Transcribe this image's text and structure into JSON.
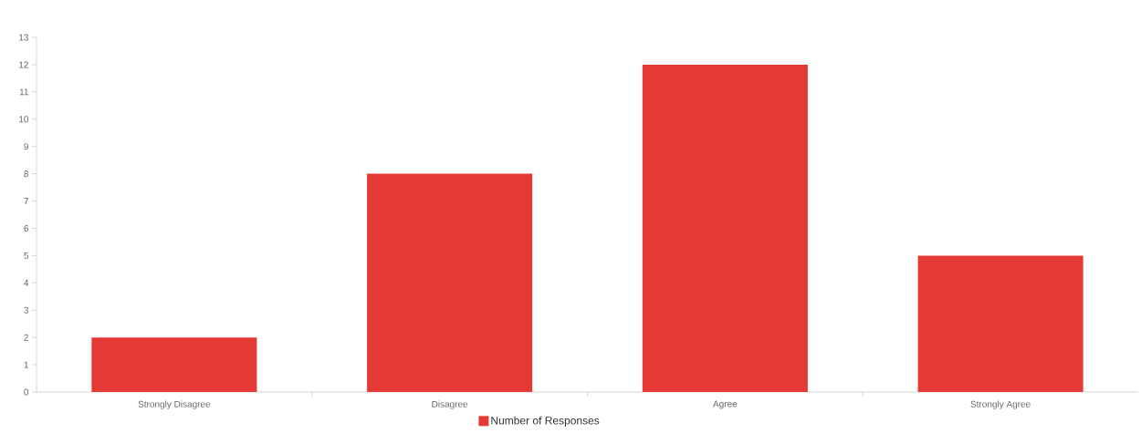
{
  "chart_data": {
    "type": "bar",
    "categories": [
      "Strongly Disagree",
      "Disagree",
      "Agree",
      "Strongly Agree"
    ],
    "series": [
      {
        "name": "Number of Responses",
        "color": "#e53935",
        "values": [
          2,
          8,
          12,
          5
        ]
      }
    ],
    "ylim": [
      0,
      13
    ],
    "yticks": [
      0,
      1,
      2,
      3,
      4,
      5,
      6,
      7,
      8,
      9,
      10,
      11,
      12,
      13
    ],
    "legend": "bottom",
    "grid": false
  }
}
